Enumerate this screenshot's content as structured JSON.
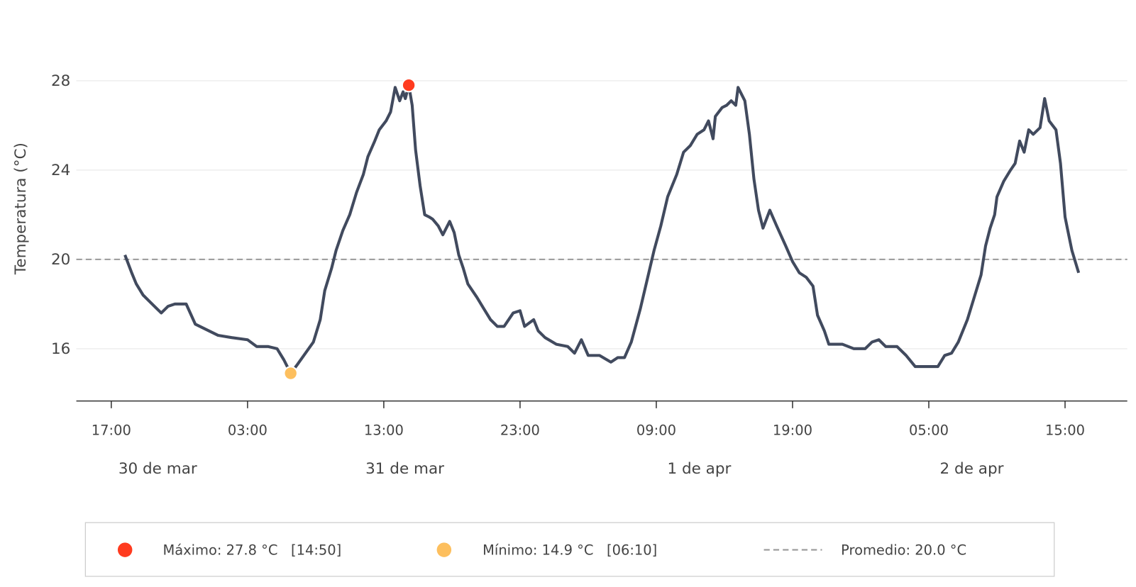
{
  "chart_data": {
    "type": "line",
    "title": "",
    "xlabel": "",
    "ylabel": "Temperatura (°C)",
    "ylim": [
      13.66,
      30.6
    ],
    "xlim": [
      "03-30T14:26",
      "04-02T19:34"
    ],
    "grid": {
      "y": true,
      "x": false
    },
    "yticks": [
      16,
      20,
      24,
      28
    ],
    "yticklabels": [
      "16",
      "20",
      "24",
      "28"
    ],
    "xticks": [
      "03-30T17:00",
      "03-31T03:00",
      "03-31T13:00",
      "03-31T23:00",
      "04-01T09:00",
      "04-01T19:00",
      "04-02T05:00",
      "04-02T15:00"
    ],
    "xticklabels": [
      "17:00",
      "03:00",
      "13:00",
      "23:00",
      "09:00",
      "19:00",
      "05:00",
      "15:00"
    ],
    "date_labels": [
      "30 de mar",
      "31 de mar",
      "1 de apr",
      "2 de apr"
    ],
    "colors": {
      "line": "#414a5e",
      "max": "#ff3b1f",
      "min": "#fdbf5e",
      "mean": "#999999",
      "grid": "#eeeeee"
    },
    "series": [
      {
        "x": [
          "03-30T18:00",
          "03-30T18:30",
          "03-30T18:50",
          "03-30T19:20",
          "03-30T19:50",
          "03-30T20:20",
          "03-30T20:40",
          "03-30T21:10",
          "03-30T21:40",
          "03-30T22:00",
          "03-30T22:30",
          "03-30T23:10",
          "03-31T00:50",
          "03-31T01:50",
          "03-31T03:00",
          "03-31T03:40",
          "03-31T04:30",
          "03-31T05:10",
          "03-31T05:40",
          "03-31T06:10",
          "03-31T06:40",
          "03-31T07:50",
          "03-31T08:20",
          "03-31T08:40",
          "03-31T09:10",
          "03-31T09:30",
          "03-31T10:00",
          "03-31T10:30",
          "03-31T11:00",
          "03-31T11:30",
          "03-31T11:50",
          "03-31T12:20",
          "03-31T12:40",
          "03-31T13:10",
          "03-31T13:30",
          "03-31T13:50",
          "03-31T14:10",
          "03-31T14:25",
          "03-31T14:35",
          "03-31T14:50",
          "03-31T15:05",
          "03-31T15:20",
          "03-31T15:40",
          "03-31T16:00",
          "03-31T16:20",
          "03-31T16:35",
          "03-31T17:00",
          "03-31T17:20",
          "03-31T17:50",
          "03-31T18:10",
          "03-31T18:30",
          "03-31T18:50",
          "03-31T19:10",
          "03-31T19:50",
          "03-31T20:20",
          "03-31T20:50",
          "03-31T21:20",
          "03-31T21:50",
          "03-31T22:30",
          "03-31T23:00",
          "03-31T23:20",
          "04-01T00:00",
          "04-01T00:20",
          "04-01T00:50",
          "04-01T01:40",
          "04-01T02:30",
          "04-01T03:00",
          "04-01T03:30",
          "04-01T04:00",
          "04-01T04:50",
          "04-01T05:40",
          "04-01T06:10",
          "04-01T06:40",
          "04-01T07:10",
          "04-01T07:50",
          "04-01T08:20",
          "04-01T08:50",
          "04-01T09:20",
          "04-01T09:50",
          "04-01T10:30",
          "04-01T11:00",
          "04-01T11:30",
          "04-01T12:00",
          "04-01T12:30",
          "04-01T12:50",
          "04-01T13:10",
          "04-01T13:20",
          "04-01T13:50",
          "04-01T14:10",
          "04-01T14:30",
          "04-01T14:50",
          "04-01T15:00",
          "04-01T15:30",
          "04-01T15:50",
          "04-01T16:10",
          "04-01T16:30",
          "04-01T16:50",
          "04-01T17:20",
          "04-01T17:50",
          "04-01T18:30",
          "04-01T19:00",
          "04-01T19:30",
          "04-01T20:00",
          "04-01T20:30",
          "04-01T20:50",
          "04-01T21:20",
          "04-01T21:40",
          "04-01T22:40",
          "04-01T23:30",
          "04-02T00:20",
          "04-02T00:50",
          "04-02T01:20",
          "04-02T01:50",
          "04-02T02:40",
          "04-02T03:20",
          "04-02T04:00",
          "04-02T04:50",
          "04-02T05:40",
          "04-02T06:10",
          "04-02T06:40",
          "04-02T07:10",
          "04-02T07:50",
          "04-02T08:20",
          "04-02T08:50",
          "04-02T09:10",
          "04-02T09:30",
          "04-02T09:50",
          "04-02T10:00",
          "04-02T10:30",
          "04-02T11:00",
          "04-02T11:20",
          "04-02T11:40",
          "04-02T12:00",
          "04-02T12:20",
          "04-02T12:40",
          "04-02T13:10",
          "04-02T13:30",
          "04-02T13:50",
          "04-02T14:20",
          "04-02T14:40",
          "04-02T15:00",
          "04-02T15:10",
          "04-02T15:30",
          "04-02T16:00"
        ],
        "y": [
          20.2,
          19.4,
          18.9,
          18.4,
          18.1,
          17.8,
          17.6,
          17.9,
          18.0,
          18.0,
          18.0,
          17.1,
          16.6,
          16.5,
          16.4,
          16.1,
          16.1,
          16.0,
          15.5,
          14.9,
          15.3,
          16.3,
          17.3,
          18.6,
          19.6,
          20.4,
          21.3,
          22.0,
          23.0,
          23.8,
          24.6,
          25.3,
          25.8,
          26.2,
          26.6,
          27.7,
          27.1,
          27.5,
          27.2,
          27.8,
          26.9,
          24.9,
          23.3,
          22.0,
          21.9,
          21.8,
          21.5,
          21.1,
          21.7,
          21.2,
          20.2,
          19.6,
          18.9,
          18.3,
          17.8,
          17.3,
          17.0,
          17.0,
          17.6,
          17.7,
          17.0,
          17.3,
          16.8,
          16.5,
          16.2,
          16.1,
          15.8,
          16.4,
          15.7,
          15.7,
          15.4,
          15.6,
          15.6,
          16.3,
          17.8,
          19.1,
          20.4,
          21.5,
          22.8,
          23.8,
          24.8,
          25.1,
          25.6,
          25.8,
          26.2,
          25.4,
          26.4,
          26.8,
          26.9,
          27.1,
          26.9,
          27.7,
          27.1,
          25.6,
          23.6,
          22.2,
          21.4,
          22.2,
          21.5,
          20.6,
          19.9,
          19.4,
          19.2,
          18.8,
          17.5,
          16.8,
          16.2,
          16.2,
          16.0,
          16.0,
          16.3,
          16.4,
          16.1,
          16.1,
          15.7,
          15.2,
          15.2,
          15.2,
          15.7,
          15.8,
          16.3,
          17.3,
          18.3,
          19.3,
          20.6,
          21.4,
          22.0,
          22.8,
          23.5,
          24.0,
          24.3,
          25.3,
          24.8,
          25.8,
          25.6,
          25.9,
          27.2,
          26.2,
          25.8,
          24.3,
          21.9,
          21.4,
          20.4,
          19.4
        ]
      }
    ],
    "max_point": {
      "x": "03-31T14:50",
      "y": 27.8
    },
    "min_point": {
      "x": "03-31T06:10",
      "y": 14.9
    },
    "mean": 20.0,
    "legend": {
      "position": "bottom",
      "max_label": "Máximo: 27.8 °C   [14:50]",
      "min_label": "Mínimo: 14.9 °C   [06:10]",
      "mean_label": "Promedio: 20.0 °C"
    }
  }
}
